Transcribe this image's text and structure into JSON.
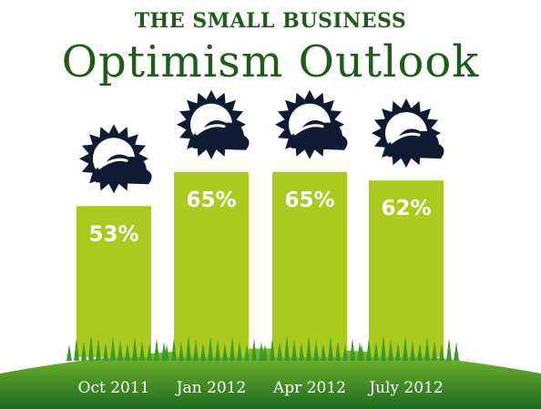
{
  "colors": {
    "title": "#1f5b1a",
    "bar": "#aacb1e",
    "label": "#ffffff",
    "icon": "#101a33",
    "hill_top": "#7bbf2e",
    "hill_bottom": "#1f6a1f",
    "grass": "#3f9a27"
  },
  "chart_data": {
    "type": "bar",
    "supertitle": "THE SMALL BUSINESS",
    "title": "Optimism Outlook",
    "categories": [
      "Oct 2011",
      "Jan 2012",
      "Apr 2012",
      "July 2012"
    ],
    "values": [
      53,
      65,
      65,
      62
    ],
    "value_labels": [
      "53%",
      "65%",
      "65%",
      "62%"
    ],
    "icon": "partly-sunny-icon",
    "ylim": [
      0,
      100
    ],
    "grid": false
  }
}
